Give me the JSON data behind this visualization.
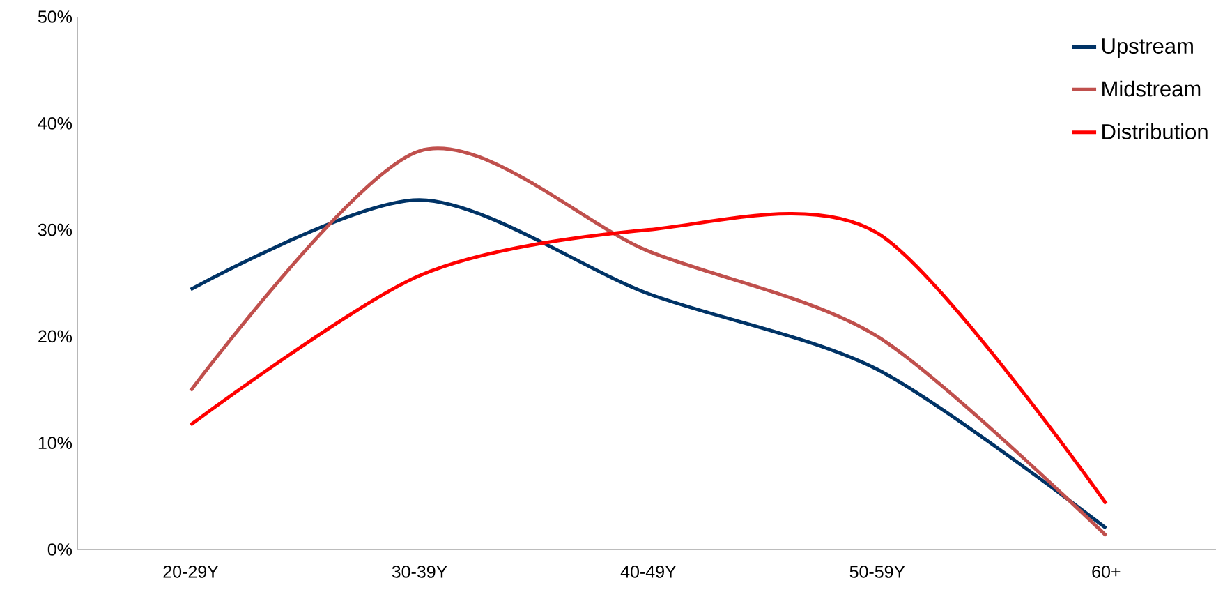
{
  "chart_data": {
    "type": "line",
    "categories": [
      "20-29Y",
      "30-39Y",
      "40-49Y",
      "50-59Y",
      "60+"
    ],
    "series": [
      {
        "name": "Upstream",
        "color": "#003366",
        "values": [
          24.4,
          32.8,
          24.0,
          16.9,
          2.0
        ]
      },
      {
        "name": "Midstream",
        "color": "#c0504d",
        "values": [
          14.9,
          37.4,
          28.0,
          20.0,
          1.3
        ]
      },
      {
        "name": "Distribution",
        "color": "#ff0000",
        "values": [
          11.7,
          25.7,
          30.0,
          29.7,
          4.3
        ]
      }
    ],
    "ylim": [
      0,
      50
    ],
    "yticks": [
      {
        "value": 0,
        "label": "0%"
      },
      {
        "value": 10,
        "label": "10%"
      },
      {
        "value": 20,
        "label": "20%"
      },
      {
        "value": 30,
        "label": "30%"
      },
      {
        "value": 40,
        "label": "40%"
      },
      {
        "value": 50,
        "label": "50%"
      }
    ],
    "legend": "top right",
    "grid": false,
    "marker": "none",
    "line_style": "solid"
  }
}
